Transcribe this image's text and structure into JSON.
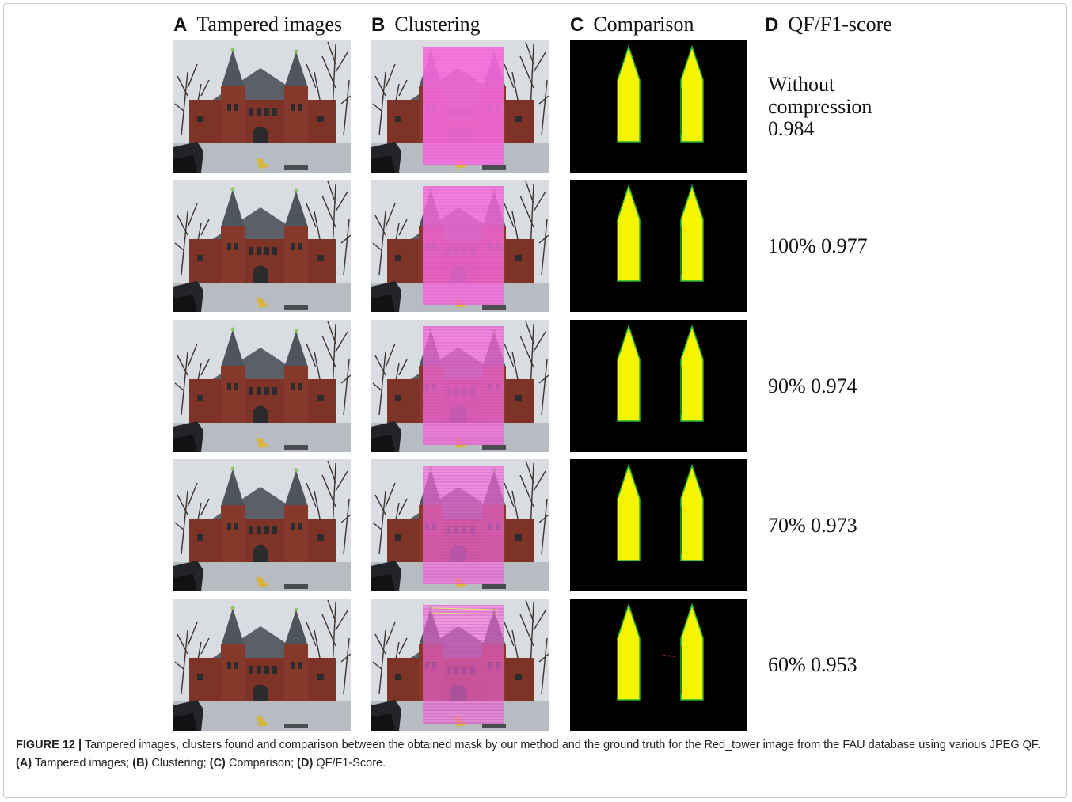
{
  "headers": [
    {
      "letter": "A",
      "title": "Tampered images"
    },
    {
      "letter": "B",
      "title": "Clustering"
    },
    {
      "letter": "C",
      "title": "Comparison"
    },
    {
      "letter": "D",
      "title": "QF/F1-score"
    }
  ],
  "rows": [
    {
      "qf": "Without compression",
      "score": "0.984"
    },
    {
      "qf": "100%",
      "score": "0.977"
    },
    {
      "qf": "90%",
      "score": "0.974"
    },
    {
      "qf": "70%",
      "score": "0.973"
    },
    {
      "qf": "60%",
      "score": "0.953"
    }
  ],
  "caption": {
    "label": "FIGURE 12 |",
    "text": "Tampered images, clusters found and comparison between the obtained mask by our method and the ground truth for the Red_tower image from the FAU database using various JPEG QF.",
    "items": [
      {
        "key": "(A)",
        "text": "Tampered images;"
      },
      {
        "key": "(B)",
        "text": "Clustering;"
      },
      {
        "key": "(C)",
        "text": "Comparison;"
      },
      {
        "key": "(D)",
        "text": "QF/F1-Score."
      }
    ]
  }
}
